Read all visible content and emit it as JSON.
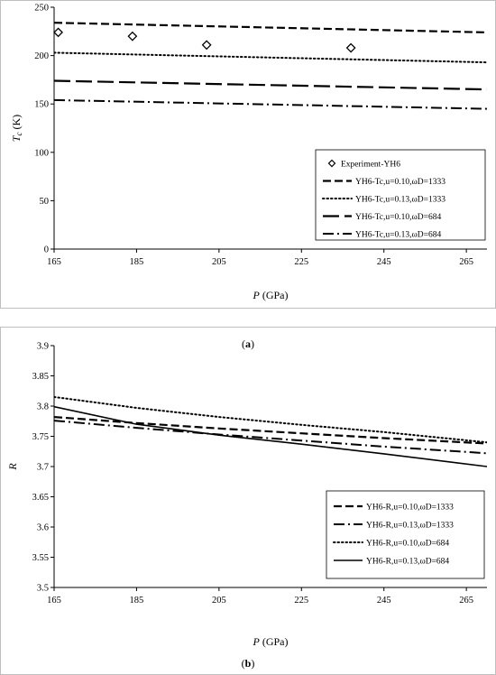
{
  "chart_data": [
    {
      "type": "line",
      "caption": "(a)",
      "xlabel_var": "P",
      "xlabel_unit": " (GPa)",
      "ylabel_var": "T",
      "ylabel_sub": "c",
      "ylabel_unit": " (K)",
      "xlim": [
        165,
        270
      ],
      "ylim": [
        0,
        250
      ],
      "xticks": [
        165,
        185,
        205,
        225,
        245,
        265
      ],
      "yticks": [
        0,
        50,
        100,
        150,
        200,
        250
      ],
      "grid": false,
      "legend_position": "bottom-right",
      "series": [
        {
          "name": "Experiment-YH6",
          "style": "marker-diamond",
          "x": [
            166,
            184,
            202,
            237
          ],
          "y": [
            224,
            220,
            211,
            208
          ]
        },
        {
          "name": "YH6-Tc,u=0.10,ωD=1333",
          "style": "dashed",
          "x": [
            165,
            270
          ],
          "y": [
            234,
            224
          ]
        },
        {
          "name": "YH6-Tc,u=0.13,ωD=1333",
          "style": "dotted",
          "x": [
            165,
            270
          ],
          "y": [
            203,
            193
          ]
        },
        {
          "name": "YH6-Tc,u=0.10,ωD=684",
          "style": "longdash",
          "x": [
            165,
            270
          ],
          "y": [
            174,
            165
          ]
        },
        {
          "name": "YH6-Tc,u=0.13,ωD=684",
          "style": "dashdot",
          "x": [
            165,
            270
          ],
          "y": [
            154,
            145
          ]
        }
      ]
    },
    {
      "type": "line",
      "caption": "(b)",
      "xlabel_var": "P",
      "xlabel_unit": " (GPa)",
      "ylabel_var": "R",
      "xlim": [
        165,
        270
      ],
      "ylim": [
        3.5,
        3.9
      ],
      "xticks": [
        165,
        185,
        205,
        225,
        245,
        265
      ],
      "yticks": [
        "3.5",
        "3.55",
        "3.6",
        "3.65",
        "3.7",
        "3.75",
        "3.8",
        "3.85",
        "3.9"
      ],
      "grid": false,
      "legend_position": "bottom-right",
      "series": [
        {
          "name": "YH6-R,u=0.10,ωD=1333",
          "style": "dashed",
          "x": [
            165,
            185,
            205,
            225,
            245,
            270
          ],
          "y": [
            3.782,
            3.772,
            3.763,
            3.755,
            3.747,
            3.738
          ]
        },
        {
          "name": "YH6-R,u=0.13,ωD=1333",
          "style": "dashdot",
          "x": [
            165,
            185,
            205,
            225,
            245,
            270
          ],
          "y": [
            3.776,
            3.764,
            3.753,
            3.743,
            3.733,
            3.722
          ]
        },
        {
          "name": "YH6-R,u=0.10,ωD=684",
          "style": "dotted",
          "x": [
            165,
            185,
            205,
            225,
            245,
            270
          ],
          "y": [
            3.815,
            3.797,
            3.782,
            3.769,
            3.757,
            3.74
          ]
        },
        {
          "name": "YH6-R,u=0.13,ωD=684",
          "style": "solid",
          "x": [
            165,
            185,
            205,
            225,
            245,
            270
          ],
          "y": [
            3.799,
            3.77,
            3.752,
            3.737,
            3.721,
            3.7
          ]
        }
      ]
    }
  ]
}
